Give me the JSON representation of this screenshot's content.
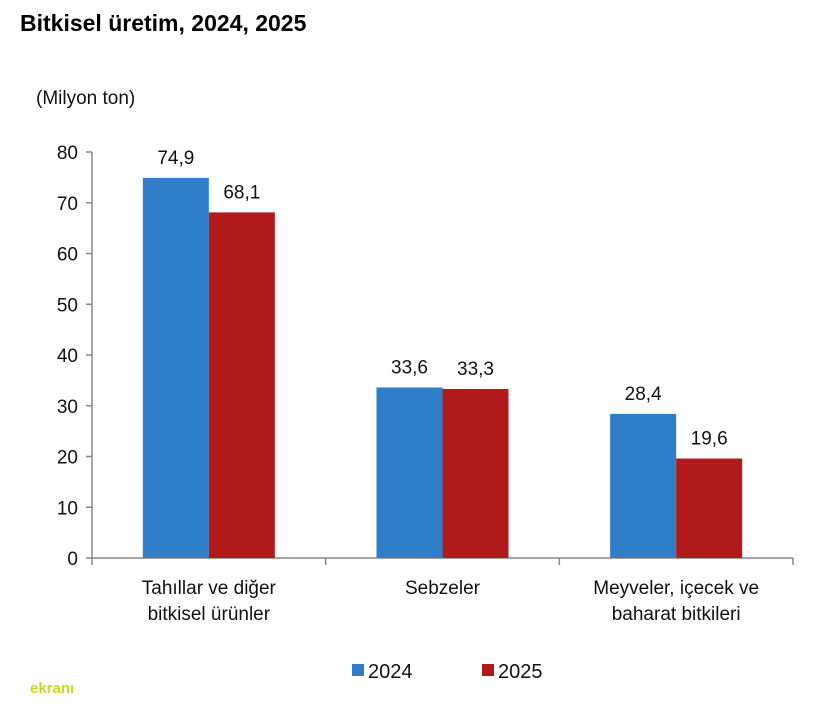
{
  "title": "Bitkisel üretim, 2024, 2025",
  "watermark": {
    "text_a": "",
    "text_b": "ekranı"
  },
  "chart_data": {
    "type": "bar",
    "title": "Bitkisel üretim, 2024, 2025",
    "ylabel": "(Milyon ton)",
    "xlabel": "",
    "ylim": [
      0,
      80
    ],
    "yticks": [
      0,
      10,
      20,
      30,
      40,
      50,
      60,
      70,
      80
    ],
    "grid": false,
    "legend": "bottom",
    "categories": [
      [
        "Tahıllar ve diğer",
        "bitkisel ürünler"
      ],
      [
        "Sebzeler"
      ],
      [
        "Meyveler, içecek ve",
        "baharat  bitkileri"
      ]
    ],
    "series": [
      {
        "name": "2024",
        "color": "#2e7fc8",
        "values": [
          74.9,
          33.6,
          28.4
        ],
        "labels": [
          "74,9",
          "33,6",
          "28,4"
        ]
      },
      {
        "name": "2025",
        "color": "#b01a1a",
        "values": [
          68.1,
          33.3,
          19.6
        ],
        "labels": [
          "68,1",
          "33,3",
          "19,6"
        ]
      }
    ]
  }
}
